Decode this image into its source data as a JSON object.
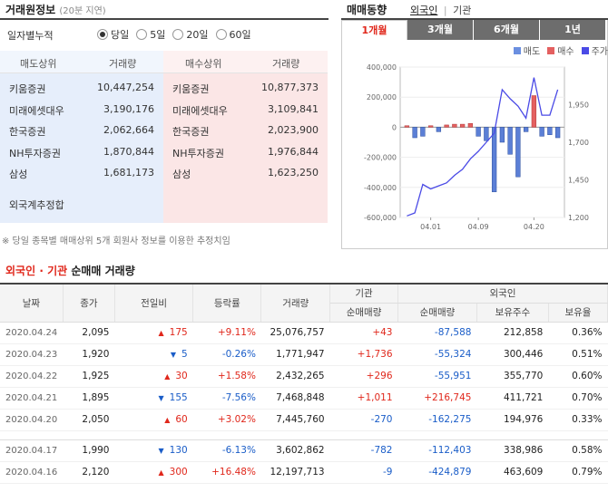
{
  "left": {
    "title": "거래원정보",
    "delay_note": "(20분 지연)",
    "cumulative_label": "일자별누적",
    "periods": [
      {
        "label": "당일",
        "selected": true
      },
      {
        "label": "5일",
        "selected": false
      },
      {
        "label": "20일",
        "selected": false
      },
      {
        "label": "60일",
        "selected": false
      }
    ],
    "headers": {
      "sell_top": "매도상위",
      "volume1": "거래량",
      "buy_top": "매수상위",
      "volume2": "거래량"
    },
    "sell": [
      {
        "name": "키움증권",
        "vol": "10,447,254"
      },
      {
        "name": "미래에셋대우",
        "vol": "3,190,176"
      },
      {
        "name": "한국증권",
        "vol": "2,062,664"
      },
      {
        "name": "NH투자증권",
        "vol": "1,870,844"
      },
      {
        "name": "삼성",
        "vol": "1,681,173"
      }
    ],
    "buy": [
      {
        "name": "키움증권",
        "vol": "10,877,373"
      },
      {
        "name": "미래에셋대우",
        "vol": "3,109,841"
      },
      {
        "name": "한국증권",
        "vol": "2,023,900"
      },
      {
        "name": "NH투자증권",
        "vol": "1,976,844"
      },
      {
        "name": "삼성",
        "vol": "1,623,250"
      }
    ],
    "foreign_total": "외국계추정합",
    "footnote": "※ 당일 종목별 매매상위 5개 회원사 정보를 이용한 추정치임"
  },
  "right": {
    "title": "매매동향",
    "foreign_link": "외국인",
    "separator": "|",
    "inst_link": "기관",
    "tabs": [
      "1개월",
      "3개월",
      "6개월",
      "1년"
    ],
    "active_tab": 0,
    "legend": [
      {
        "label": "매도",
        "color": "#6b8fe0"
      },
      {
        "label": "매수",
        "color": "#e46060"
      },
      {
        "label": "주가",
        "color": "#4a4ae6"
      }
    ]
  },
  "chart_data": {
    "type": "bar",
    "left_axis_ticks": [
      "400,000",
      "200,000",
      "0",
      "-200,000",
      "-400,000",
      "-600,000"
    ],
    "left_axis_values": [
      400000,
      200000,
      0,
      -200000,
      -400000,
      -600000
    ],
    "right_axis_ticks": [
      "1,950",
      "1,700",
      "1,450",
      "1,200"
    ],
    "right_axis_values": [
      1950,
      1700,
      1450,
      1200
    ],
    "x_ticks": [
      "04.01",
      "04.09",
      "04.20"
    ],
    "x_tick_index": [
      3,
      9,
      16
    ],
    "net_buy": [
      10000,
      -70000,
      -60000,
      10000,
      -30000,
      15000,
      20000,
      20000,
      25000,
      -60000,
      -90000,
      -430000,
      -100000,
      -180000,
      -330000,
      -30000,
      210000,
      -60000,
      -50000,
      -70000
    ],
    "price": [
      1210,
      1230,
      1420,
      1390,
      1410,
      1430,
      1480,
      1520,
      1590,
      1640,
      1700,
      1760,
      2050,
      1990,
      1940,
      1860,
      2130,
      1880,
      1880,
      2050
    ]
  },
  "table": {
    "title_a": "외국인",
    "title_dot": "·",
    "title_b": "기관",
    "title_c": "순매매 거래량",
    "group_inst": "기관",
    "group_foreign": "외국인",
    "headers": [
      "날짜",
      "종가",
      "전일비",
      "등락률",
      "거래량",
      "순매매량",
      "순매매량",
      "보유주수",
      "보유율"
    ],
    "rows": [
      {
        "date": "2020.04.24",
        "close": "2,095",
        "dir": "up",
        "change": "175",
        "rate": "+9.11%",
        "vol": "25,076,757",
        "inst": "+43",
        "frg": "-87,588",
        "hold": "212,858",
        "ratio": "0.36%"
      },
      {
        "date": "2020.04.23",
        "close": "1,920",
        "dir": "down",
        "change": "5",
        "rate": "-0.26%",
        "vol": "1,771,947",
        "inst": "+1,736",
        "frg": "-55,324",
        "hold": "300,446",
        "ratio": "0.51%"
      },
      {
        "date": "2020.04.22",
        "close": "1,925",
        "dir": "up",
        "change": "30",
        "rate": "+1.58%",
        "vol": "2,432,265",
        "inst": "+296",
        "frg": "-55,951",
        "hold": "355,770",
        "ratio": "0.60%"
      },
      {
        "date": "2020.04.21",
        "close": "1,895",
        "dir": "down",
        "change": "155",
        "rate": "-7.56%",
        "vol": "7,468,848",
        "inst": "+1,011",
        "frg": "+216,745",
        "hold": "411,721",
        "ratio": "0.70%"
      },
      {
        "date": "2020.04.20",
        "close": "2,050",
        "dir": "up",
        "change": "60",
        "rate": "+3.02%",
        "vol": "7,445,760",
        "inst": "-270",
        "frg": "-162,275",
        "hold": "194,976",
        "ratio": "0.33%"
      },
      {
        "date": "2020.04.17",
        "close": "1,990",
        "dir": "down",
        "change": "130",
        "rate": "-6.13%",
        "vol": "3,602,862",
        "inst": "-782",
        "frg": "-112,403",
        "hold": "338,986",
        "ratio": "0.58%"
      },
      {
        "date": "2020.04.16",
        "close": "2,120",
        "dir": "up",
        "change": "300",
        "rate": "+16.48%",
        "vol": "12,197,713",
        "inst": "-9",
        "frg": "-424,879",
        "hold": "463,609",
        "ratio": "0.79%"
      }
    ]
  }
}
